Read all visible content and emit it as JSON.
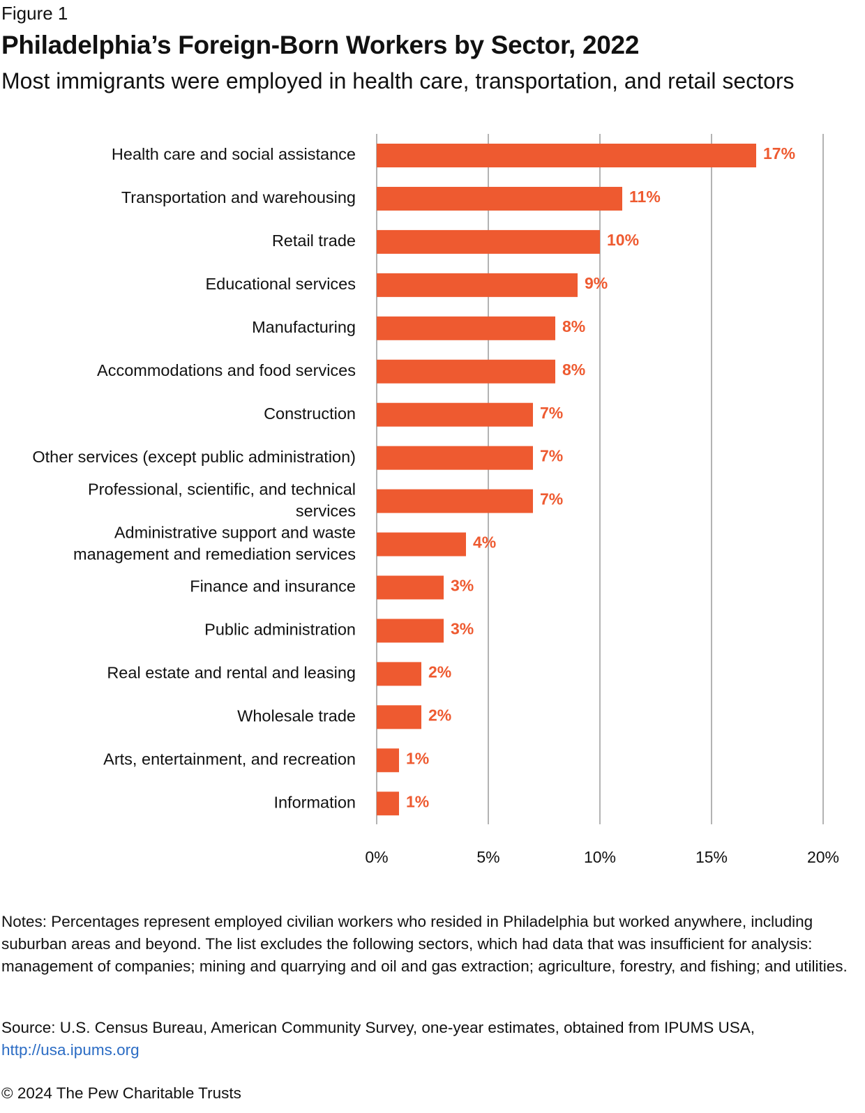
{
  "figure_label": "Figure 1",
  "chart_data": {
    "type": "bar",
    "orientation": "horizontal",
    "title": "Philadelphia’s Foreign-Born Workers by Sector, 2022",
    "subtitle": "Most immigrants were employed in health care, transportation, and retail sectors",
    "categories": [
      [
        "Health care and social assistance"
      ],
      [
        "Transportation and warehousing"
      ],
      [
        "Retail trade"
      ],
      [
        "Educational services"
      ],
      [
        "Manufacturing"
      ],
      [
        "Accommodations and food services"
      ],
      [
        "Construction"
      ],
      [
        "Other services (except public administration)"
      ],
      [
        "Professional, scientific, and technical",
        "services"
      ],
      [
        "Administrative support and waste",
        "management and remediation services"
      ],
      [
        "Finance and insurance"
      ],
      [
        "Public administration"
      ],
      [
        "Real estate and rental and leasing"
      ],
      [
        "Wholesale trade"
      ],
      [
        "Arts, entertainment, and recreation"
      ],
      [
        "Information"
      ]
    ],
    "values": [
      17,
      11,
      10,
      9,
      8,
      8,
      7,
      7,
      7,
      4,
      3,
      3,
      2,
      2,
      1,
      1
    ],
    "value_labels": [
      "17%",
      "11%",
      "10%",
      "9%",
      "8%",
      "8%",
      "7%",
      "7%",
      "7%",
      "4%",
      "3%",
      "3%",
      "2%",
      "2%",
      "1%",
      "1%"
    ],
    "xlim": [
      0,
      20
    ],
    "x_ticks": [
      0,
      5,
      10,
      15,
      20
    ],
    "x_tick_labels": [
      "0%",
      "5%",
      "10%",
      "15%",
      "20%"
    ],
    "xlabel": "",
    "ylabel": "",
    "grid": "vertical",
    "bar_color": "#ee5a30",
    "gridline_color": "#b3b3b3"
  },
  "notes": "Notes: Percentages represent employed civilian workers who resided in Philadelphia but worked anywhere, including suburban areas and beyond. The list excludes the following sectors, which had data that was insufficient for analysis: management of companies; mining and quarrying and oil and gas extraction; agriculture, forestry, and fishing; and utilities.",
  "source": {
    "text": "Source: U.S. Census Bureau, American Community Survey, one-year estimates, obtained from IPUMS USA,",
    "link": "http://usa.ipums.org"
  },
  "copyright": "© 2024 The Pew Charitable Trusts"
}
